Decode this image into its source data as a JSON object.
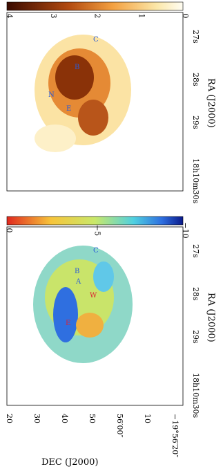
{
  "dec_label": "DEC (J2000)",
  "dec_ticks": [
    "20",
    "30",
    "40",
    "50",
    "56′00″",
    "10",
    "−19°56′20″"
  ],
  "panels": [
    {
      "colorbar_ticks": [
        "4",
        "3",
        "2",
        "1",
        "0"
      ],
      "ra_label": "RA (J2000)",
      "ra_ticks": [
        "27s",
        "28s",
        "29s",
        "18h10m30s"
      ],
      "markers": [
        "B",
        "C",
        "E",
        "N"
      ]
    },
    {
      "colorbar_ticks": [
        "0",
        "−5",
        "−10"
      ],
      "ra_label": "RA (J2000)",
      "ra_ticks": [
        "27s",
        "28s",
        "29s",
        "18h10m30s"
      ],
      "markers": [
        "A",
        "B",
        "C",
        "E",
        "W"
      ]
    }
  ]
}
